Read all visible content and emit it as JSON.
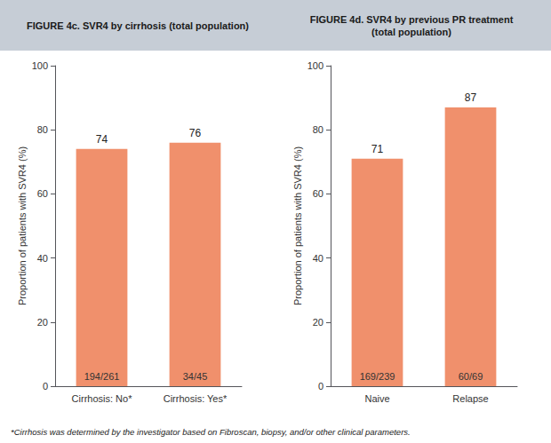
{
  "chart_data": [
    {
      "type": "bar",
      "title": "FIGURE 4c. SVR4 by cirrhosis (total population)",
      "ylabel": "Proportion of patients with SVR4 (%)",
      "categories": [
        "Cirrhosis: No*",
        "Cirrhosis: Yes*"
      ],
      "values": [
        74,
        76
      ],
      "bar_labels": [
        "194/261",
        "34/45"
      ],
      "color": "#f0906c",
      "ylim": [
        0,
        100
      ],
      "yticks": [
        0,
        20,
        40,
        60,
        80,
        100
      ],
      "grid": false,
      "data_labels": true,
      "footnote": "*Cirrhosis was determined by the investigator based on Fibroscan, biopsy, and/or other clinical parameters."
    },
    {
      "type": "bar",
      "title": "FIGURE 4d. SVR4 by previous PR treatment\n(total population)",
      "ylabel": "Proportion of patients with SVR4 (%)",
      "categories": [
        "Naive",
        "Relapse"
      ],
      "values": [
        71,
        87
      ],
      "bar_labels": [
        "169/239",
        "60/69"
      ],
      "color": "#f0906c",
      "ylim": [
        0,
        100
      ],
      "yticks": [
        0,
        20,
        40,
        60,
        80,
        100
      ],
      "grid": false,
      "data_labels": true
    }
  ]
}
